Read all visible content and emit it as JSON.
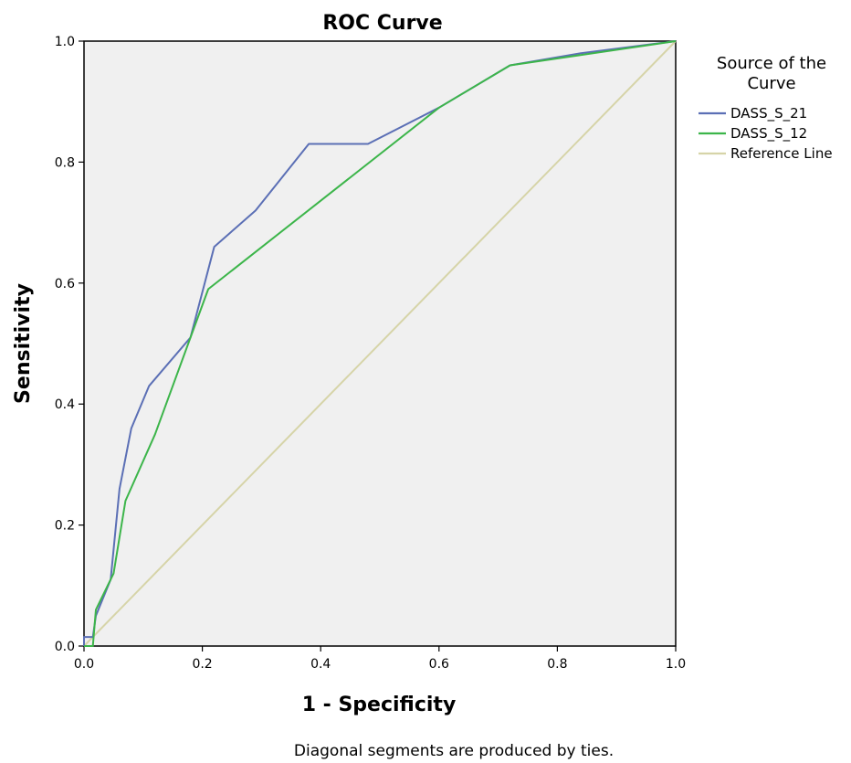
{
  "chart_data": {
    "type": "line",
    "title": "ROC Curve",
    "xlabel": "1 - Specificity",
    "ylabel": "Sensitivity",
    "xlim": [
      0,
      1
    ],
    "ylim": [
      0,
      1
    ],
    "x_ticks": [
      "0.0",
      "0.2",
      "0.4",
      "0.6",
      "0.8",
      "1.0"
    ],
    "y_ticks": [
      "0.0",
      "0.2",
      "0.4",
      "0.6",
      "0.8",
      "1.0"
    ],
    "grid": false,
    "legend": {
      "title_lines": [
        "Source of the",
        "Curve"
      ],
      "position": "right"
    },
    "series": [
      {
        "name": "DASS_S_21",
        "color": "#5b6fb5",
        "x": [
          0,
          0,
          0.015,
          0.02,
          0.045,
          0.06,
          0.08,
          0.11,
          0.18,
          0.22,
          0.29,
          0.38,
          0.48,
          0.6,
          0.72,
          0.84,
          1.0
        ],
        "y": [
          0,
          0.015,
          0.015,
          0.05,
          0.11,
          0.26,
          0.36,
          0.43,
          0.51,
          0.66,
          0.72,
          0.83,
          0.83,
          0.89,
          0.96,
          0.98,
          1.0
        ]
      },
      {
        "name": "DASS_S_12",
        "color": "#3cb54a",
        "x": [
          0,
          0.015,
          0.02,
          0.05,
          0.07,
          0.12,
          0.18,
          0.21,
          0.6,
          0.72,
          1.0
        ],
        "y": [
          0,
          0.0,
          0.06,
          0.12,
          0.24,
          0.35,
          0.51,
          0.59,
          0.89,
          0.96,
          1.0
        ]
      },
      {
        "name": "Reference Line",
        "color": "#d6d4a8",
        "x": [
          0,
          1
        ],
        "y": [
          0,
          1
        ]
      }
    ],
    "footnote": "Diagonal segments are produced by ties."
  }
}
